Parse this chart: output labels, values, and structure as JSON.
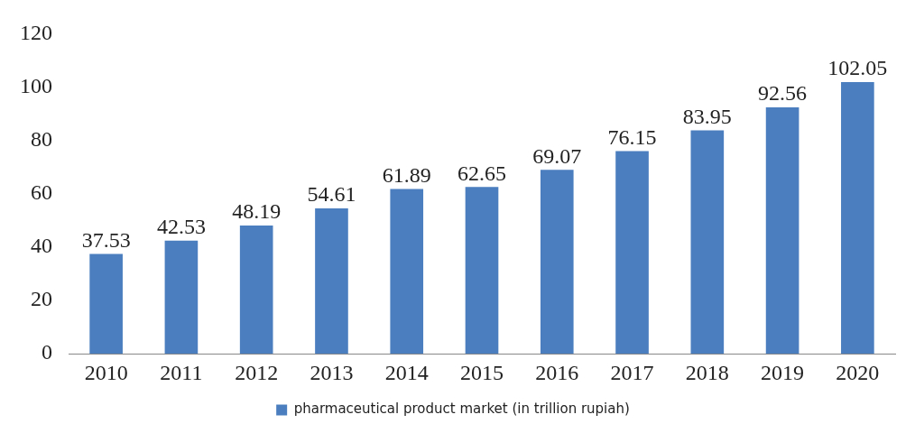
{
  "chart_data": {
    "type": "bar",
    "categories": [
      "2010",
      "2011",
      "2012",
      "2013",
      "2014",
      "2015",
      "2016",
      "2017",
      "2018",
      "2019",
      "2020"
    ],
    "series": [
      {
        "name": "pharmaceutical product market (in trillion rupiah)",
        "color": "#4a7ebf",
        "values": [
          37.53,
          42.53,
          48.19,
          54.61,
          61.89,
          62.65,
          69.07,
          76.15,
          83.95,
          92.56,
          102.05
        ]
      }
    ],
    "ylim": [
      0,
      120
    ],
    "yticks": [
      0,
      20,
      40,
      60,
      80,
      100,
      120
    ],
    "grid": false,
    "legend": "bottom",
    "data_labels": true
  }
}
